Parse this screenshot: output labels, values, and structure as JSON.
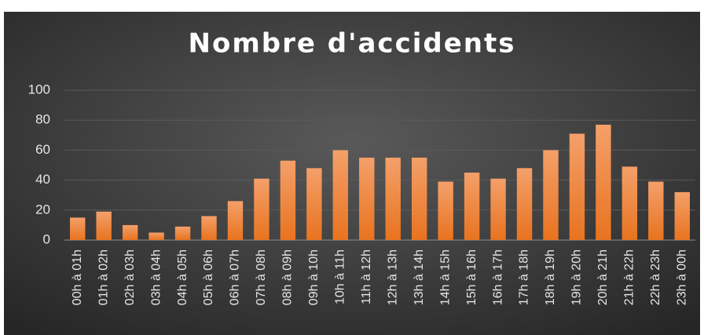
{
  "chart_data": {
    "type": "bar",
    "title": "Nombre d'accidents",
    "categories": [
      "00h à 01h",
      "01h à 02h",
      "02h à 03h",
      "03h à 04h",
      "04h à 05h",
      "05h à 06h",
      "06h à 07h",
      "07h à 08h",
      "08h à 09h",
      "09h à 10h",
      "10h à 11h",
      "11h à 12h",
      "12h à 13h",
      "13h à 14h",
      "14h à 15h",
      "15h à 16h",
      "16h à 17h",
      "17h à 18h",
      "18h à 19h",
      "19h à 20h",
      "20h à 21h",
      "21h à 22h",
      "22h à 23h",
      "23h à 00h"
    ],
    "values": [
      15,
      19,
      10,
      5,
      9,
      16,
      26,
      41,
      53,
      48,
      60,
      55,
      55,
      55,
      39,
      45,
      41,
      48,
      60,
      71,
      77,
      49,
      39,
      32
    ],
    "color": "#ed7d31",
    "ylim": [
      0,
      100
    ],
    "yticks": [
      0,
      20,
      40,
      60,
      80,
      100
    ],
    "grid": true
  }
}
